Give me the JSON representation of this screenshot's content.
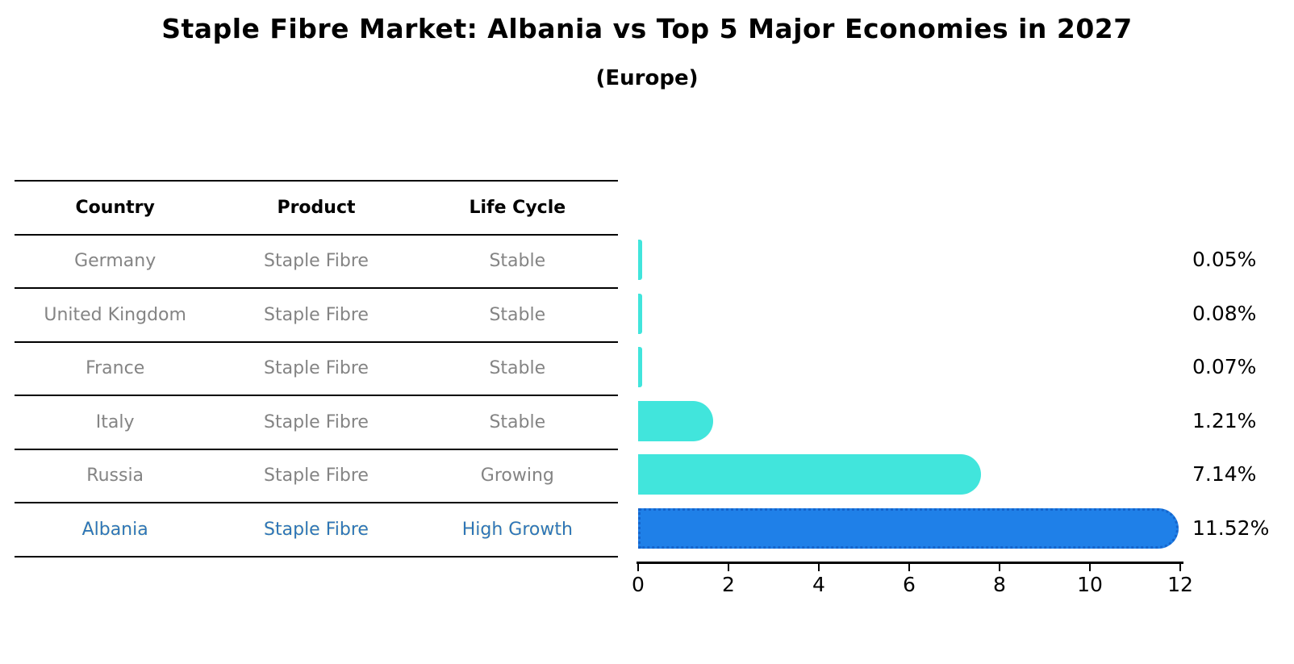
{
  "title": "Staple Fibre Market: Albania vs Top 5 Major Economies in 2027",
  "subtitle": "(Europe)",
  "table": {
    "columns": [
      "Country",
      "Product",
      "Life Cycle"
    ],
    "rows": [
      {
        "country": "Germany",
        "product": "Staple Fibre",
        "life_cycle": "Stable",
        "highlight": false
      },
      {
        "country": "United Kingdom",
        "product": "Staple Fibre",
        "life_cycle": "Stable",
        "highlight": false
      },
      {
        "country": "France",
        "product": "Staple Fibre",
        "life_cycle": "Stable",
        "highlight": false
      },
      {
        "country": "Italy",
        "product": "Staple Fibre",
        "life_cycle": "Stable",
        "highlight": false
      },
      {
        "country": "Russia",
        "product": "Staple Fibre",
        "life_cycle": "Growing",
        "highlight": false
      },
      {
        "country": "Albania",
        "product": "Staple Fibre",
        "life_cycle": "High Growth",
        "highlight": true
      }
    ]
  },
  "chart_data": {
    "type": "bar",
    "orientation": "horizontal",
    "categories": [
      "Germany",
      "United Kingdom",
      "France",
      "Italy",
      "Russia",
      "Albania"
    ],
    "values": [
      0.05,
      0.08,
      0.07,
      1.21,
      7.14,
      11.52
    ],
    "labels": [
      "0.05%",
      "0.08%",
      "0.07%",
      "1.21%",
      "7.14%",
      "11.52%"
    ],
    "title": "Staple Fibre Market: Albania vs Top 5 Major Economies in 2027 (Europe)",
    "xlabel": "",
    "ylabel": "",
    "xlim": [
      0,
      12
    ],
    "x_ticks": [
      0,
      2,
      4,
      6,
      8,
      10,
      12
    ],
    "grid": false,
    "legend": false,
    "highlight_index": 5
  },
  "colors": {
    "bar_default": "#41E5DC",
    "bar_highlight": "#1F80E8",
    "bar_highlight_edge": "#1565CC",
    "highlight_text": "#2E75B6",
    "table_text": "#848484",
    "heading_text": "#000000",
    "background": "#FFFFFF"
  }
}
